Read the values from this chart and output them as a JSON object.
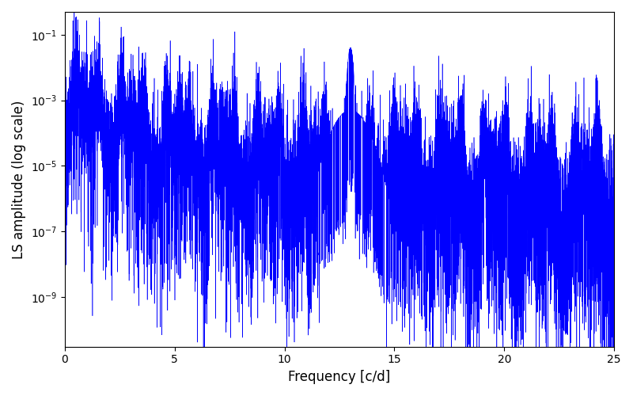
{
  "xlabel": "Frequency [c/d]",
  "ylabel": "LS amplitude (log scale)",
  "line_color": "#0000ff",
  "xlim": [
    0,
    25
  ],
  "ylim": [
    3e-11,
    0.5
  ],
  "freq_max": 25.0,
  "n_points": 12000,
  "seed": 42,
  "spike_freq": 13.0,
  "spike_amplitude": 0.04,
  "figsize": [
    8.0,
    5.0
  ],
  "dpi": 100
}
